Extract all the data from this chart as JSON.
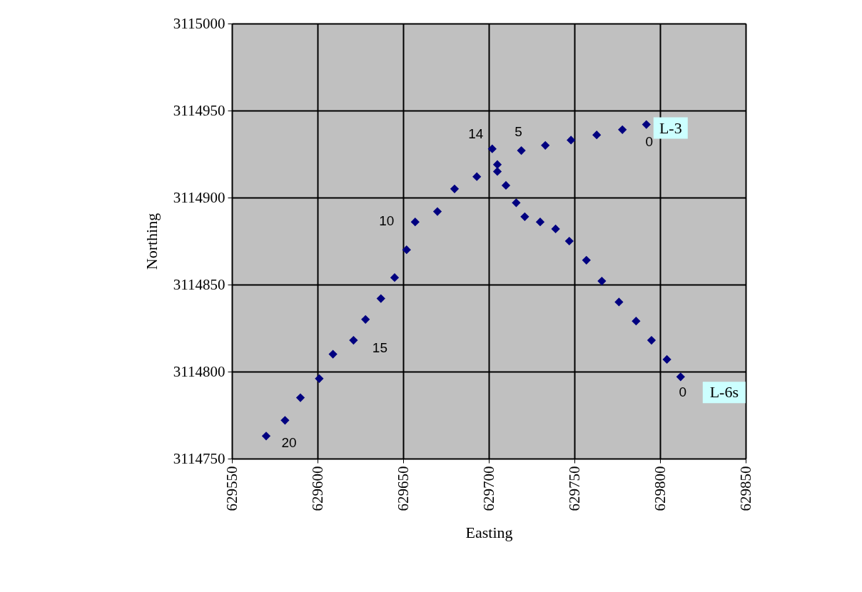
{
  "chart_data": {
    "type": "scatter",
    "xlabel": "Easting",
    "ylabel": "Northing",
    "xlim": [
      629550,
      629850
    ],
    "xticks": [
      629550,
      629600,
      629650,
      629700,
      629750,
      629800,
      629850
    ],
    "ylim": [
      3114750,
      3115000
    ],
    "yticks": [
      3114750,
      3114800,
      3114850,
      3114900,
      3114950,
      3115000
    ],
    "grid": true,
    "marker": "diamond",
    "legend": false,
    "series": [
      {
        "name": "L-3",
        "color": "#000080",
        "x": [
          629792,
          629778,
          629763,
          629748,
          629733,
          629719,
          629702,
          629693,
          629680,
          629670,
          629657,
          629652,
          629645,
          629637,
          629628,
          629621,
          629609,
          629601,
          629590,
          629581,
          629570
        ],
        "values": [
          3114942,
          3114939,
          3114936,
          3114933,
          3114930,
          3114927,
          3114928,
          3114912,
          3114905,
          3114892,
          3114886,
          3114870,
          3114854,
          3114842,
          3114830,
          3114818,
          3114810,
          3114796,
          3114785,
          3114772,
          3114763
        ]
      },
      {
        "name": "L-6s",
        "color": "#000080",
        "x": [
          629812,
          629804,
          629795,
          629786,
          629776,
          629766,
          629757,
          629747,
          629739,
          629730,
          629721,
          629716,
          629710,
          629705,
          629705
        ],
        "values": [
          3114797,
          3114807,
          3114818,
          3114829,
          3114840,
          3114852,
          3114864,
          3114875,
          3114882,
          3114886,
          3114889,
          3114897,
          3114907,
          3114915,
          3114919
        ]
      }
    ],
    "annotations": [
      {
        "text": "0",
        "x": 629792,
        "y": 3114942
      },
      {
        "text": "5",
        "x": 629719,
        "y": 3114927
      },
      {
        "text": "14",
        "x": 629702,
        "y": 3114928
      },
      {
        "text": "10",
        "x": 629657,
        "y": 3114886
      },
      {
        "text": "15",
        "x": 629621,
        "y": 3114818
      },
      {
        "text": "20",
        "x": 629570,
        "y": 3114763
      },
      {
        "text": "0",
        "x": 629812,
        "y": 3114797
      }
    ]
  }
}
